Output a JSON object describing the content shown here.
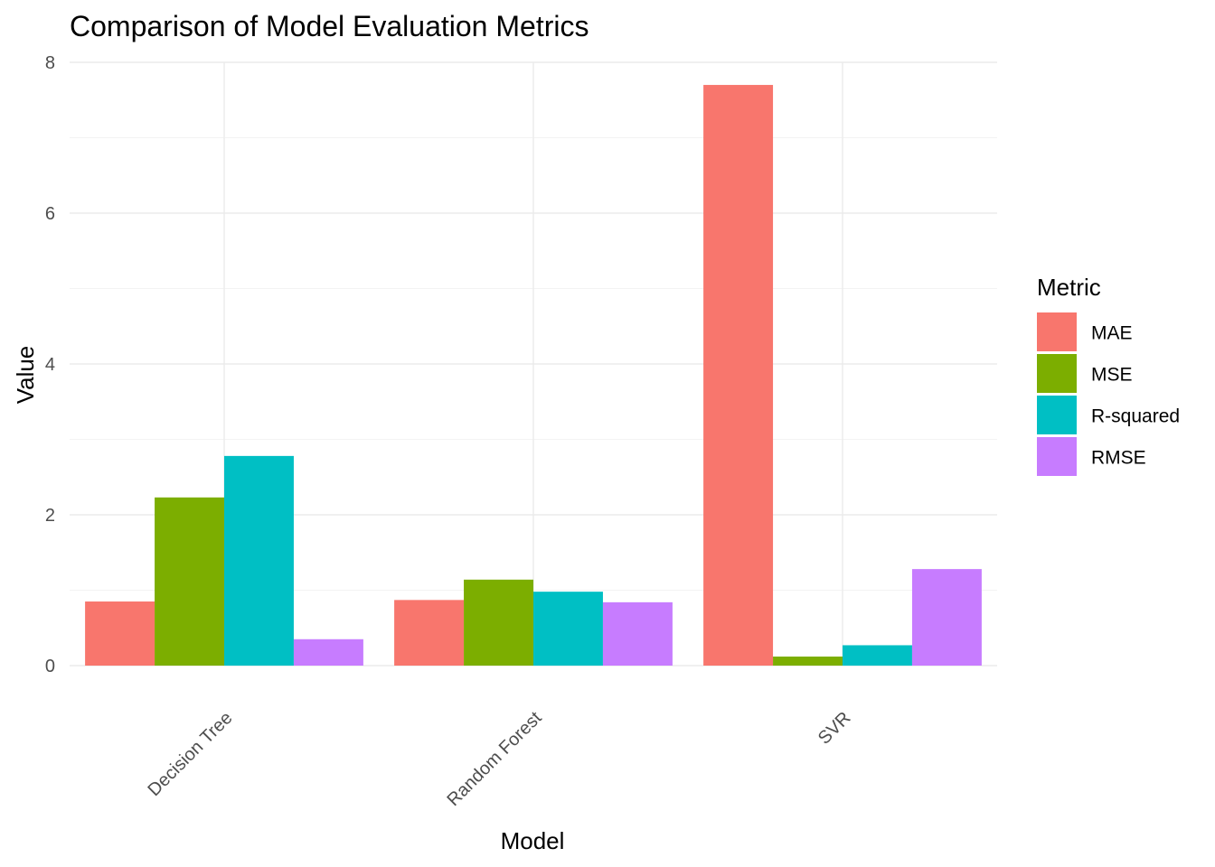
{
  "chart_data": {
    "type": "bar",
    "title": "Comparison of Model Evaluation Metrics",
    "xlabel": "Model",
    "ylabel": "Value",
    "categories": [
      "Decision Tree",
      "Random Forest",
      "SVR"
    ],
    "ylim": [
      0,
      8
    ],
    "yticks": [
      "0",
      "2",
      "4",
      "6",
      "8"
    ],
    "grid": true,
    "legend": {
      "title": "Metric",
      "position": "right"
    },
    "series": [
      {
        "name": "MAE",
        "color": "#F8766D",
        "values": [
          0.85,
          0.87,
          7.7
        ]
      },
      {
        "name": "MSE",
        "color": "#7CAE00",
        "values": [
          2.23,
          1.14,
          0.12
        ]
      },
      {
        "name": "R-squared",
        "color": "#00BFC4",
        "values": [
          2.78,
          0.98,
          0.27
        ]
      },
      {
        "name": "RMSE",
        "color": "#C77CFF",
        "values": [
          0.35,
          0.84,
          1.28
        ]
      }
    ]
  }
}
